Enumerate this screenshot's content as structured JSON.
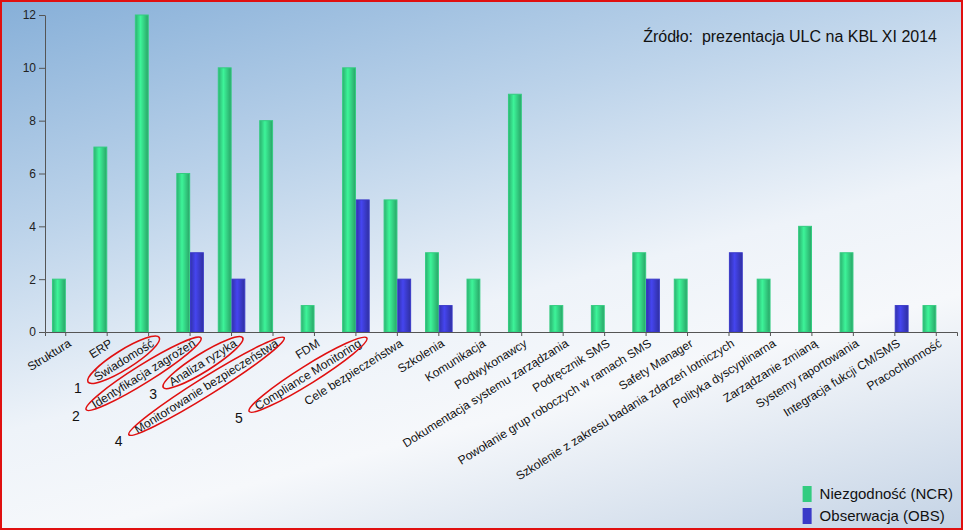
{
  "chart_data": {
    "type": "bar",
    "title": "Źródło:  prezentacja ULC na KBL XI 2014",
    "categories": [
      "Struktura",
      "ERP",
      "Świadomość",
      "Identyfikacja zagrożeń",
      "Analiza ryzyka",
      "Monitorowanie bezpieczeństwa",
      "FDM",
      "Compliance Monitoring",
      "Cele bezpieczeństwa",
      "Szkolenia",
      "Komunikacja",
      "Podwykonawcy",
      "Dokumentacja systemu zarządzania",
      "Podręcznik SMS",
      "Powołanie grup roboczych w ramach SMS",
      "Safety Manager",
      "Szkolenie z zakresu badania zdarzeń lotniczych",
      "Polityka dyscyplinarna",
      "Zarządzanie zmianą",
      "Systemy raportowania",
      "Integracja fukcji CM/SMS",
      "Pracochłonność"
    ],
    "series": [
      {
        "name": "Niezgodność (NCR)",
        "color": "#33cc80",
        "values": [
          2,
          7,
          12,
          6,
          10,
          8,
          1,
          10,
          5,
          3,
          2,
          9,
          1,
          1,
          3,
          2,
          0,
          2,
          4,
          3,
          0,
          1
        ]
      },
      {
        "name": "Obserwacja (OBS)",
        "color": "#3a3ac8",
        "values": [
          0,
          0,
          0,
          3,
          2,
          0,
          0,
          5,
          2,
          1,
          0,
          0,
          0,
          0,
          2,
          0,
          3,
          0,
          0,
          0,
          1,
          0
        ]
      }
    ],
    "ylim": [
      0,
      12
    ],
    "yticks": [
      0,
      2,
      4,
      6,
      8,
      10,
      12
    ],
    "grid": false,
    "legend": "lower right",
    "annotations": [
      {
        "text": "1",
        "category": "Świadomość"
      },
      {
        "text": "2",
        "category": "Identyfikacja zagrożeń"
      },
      {
        "text": "3",
        "category": "Analiza ryzyka"
      },
      {
        "text": "4",
        "category": "Monitorowanie bezpieczeństwa"
      },
      {
        "text": "5",
        "category": "Compliance Monitoring"
      }
    ]
  }
}
